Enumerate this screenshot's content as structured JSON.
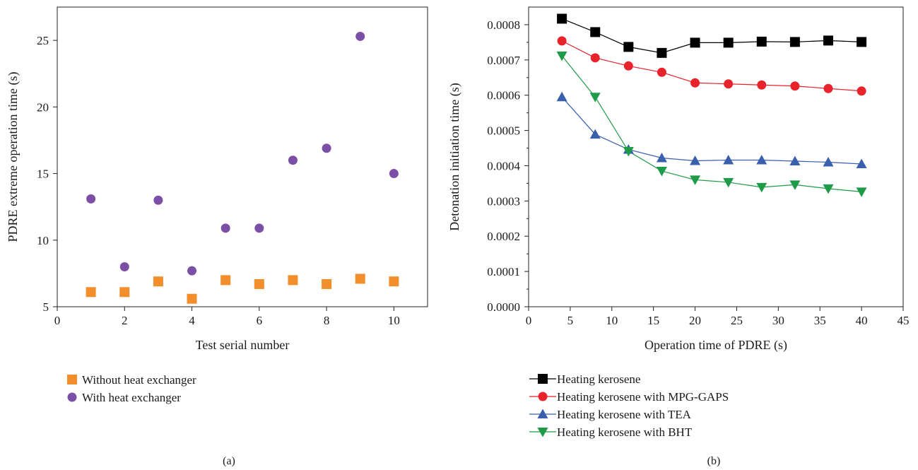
{
  "chart_data": [
    {
      "type": "scatter",
      "caption": "(a)",
      "xlabel": "Test serial number",
      "ylabel": "PDRE extreme operation time (s)",
      "xlim": [
        0,
        11
      ],
      "ylim": [
        5,
        27.5
      ],
      "xticks": [
        0,
        2,
        4,
        6,
        8,
        10
      ],
      "yticks": [
        5,
        10,
        15,
        20,
        25
      ],
      "legend_position": "bottom-left",
      "grid": false,
      "series": [
        {
          "name": "Without heat exchanger",
          "marker": "square",
          "color": "#f28e2b",
          "x": [
            1,
            2,
            3,
            4,
            5,
            6,
            7,
            8,
            9,
            10
          ],
          "y": [
            6.1,
            6.1,
            6.9,
            5.6,
            7.0,
            6.7,
            7.0,
            6.7,
            7.1,
            6.9
          ]
        },
        {
          "name": "With heat exchanger",
          "marker": "circle",
          "color": "#7b4fa6",
          "x": [
            1,
            2,
            3,
            4,
            5,
            6,
            7,
            8,
            9,
            10
          ],
          "y": [
            13.1,
            8.0,
            13.0,
            7.7,
            10.9,
            10.9,
            16.0,
            16.9,
            25.3,
            15.0
          ]
        }
      ]
    },
    {
      "type": "line",
      "caption": "(b)",
      "xlabel": "Operation time of PDRE (s)",
      "ylabel": "Detonation initiation time (s)",
      "xlim": [
        0,
        45
      ],
      "ylim": [
        0,
        0.00085
      ],
      "xticks": [
        0,
        5,
        10,
        15,
        20,
        25,
        30,
        35,
        40,
        45
      ],
      "yticks": [
        "0.0000",
        "0.0001",
        "0.0002",
        "0.0003",
        "0.0004",
        "0.0005",
        "0.0006",
        "0.0007",
        "0.0008"
      ],
      "legend_position": "bottom-left",
      "grid": false,
      "x": [
        4,
        8,
        12,
        16,
        20,
        24,
        28,
        32,
        36,
        40
      ],
      "series": [
        {
          "name": "Heating kerosene",
          "marker": "square",
          "color": "#000000",
          "values": [
            0.000817,
            0.000779,
            0.000737,
            0.00072,
            0.000749,
            0.000749,
            0.000752,
            0.000751,
            0.000755,
            0.000751
          ]
        },
        {
          "name": "Heating kerosene with MPG-GAPS",
          "marker": "circle",
          "color": "#e8232b",
          "values": [
            0.000754,
            0.000706,
            0.000683,
            0.000665,
            0.000635,
            0.000632,
            0.000629,
            0.000626,
            0.000619,
            0.000612
          ]
        },
        {
          "name": "Heating kerosene with TEA",
          "marker": "triangle-up",
          "color": "#3a5fac",
          "values": [
            0.000595,
            0.000489,
            0.000446,
            0.000422,
            0.000414,
            0.000416,
            0.000416,
            0.000413,
            0.00041,
            0.000405
          ]
        },
        {
          "name": "Heating kerosene with BHT",
          "marker": "triangle-down",
          "color": "#1f9a48",
          "values": [
            0.000712,
            0.000595,
            0.000441,
            0.000385,
            0.00036,
            0.000353,
            0.000339,
            0.000346,
            0.000335,
            0.000326
          ]
        }
      ]
    }
  ]
}
